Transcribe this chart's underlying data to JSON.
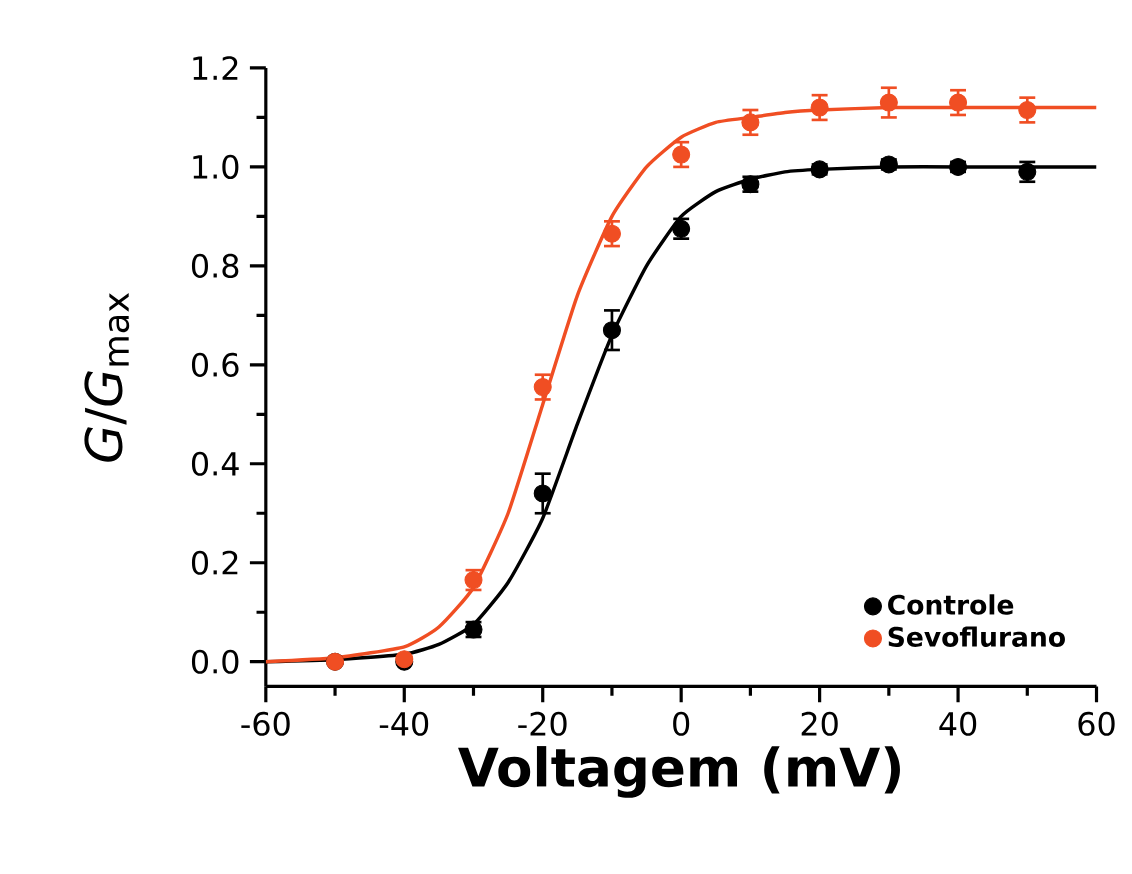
{
  "chart_data": {
    "type": "scatter",
    "xlabel": "Voltagem (mV)",
    "ylabel": "*G*/*G*$_{max}$",
    "xlim": [
      -60,
      60
    ],
    "ylim": [
      -0.05,
      1.2
    ],
    "xticks": [
      -60,
      -40,
      -20,
      0,
      20,
      40,
      60
    ],
    "yticks": [
      {
        "value": 0,
        "label": "0.0"
      },
      {
        "value": 0.2,
        "label": "0.2"
      },
      {
        "value": 0.4,
        "label": "0.4"
      },
      {
        "value": 0.6,
        "label": "0.6"
      },
      {
        "value": 0.8,
        "label": "0.8"
      },
      {
        "value": 1,
        "label": "1.0"
      },
      {
        "value": 1.2,
        "label": "1.2"
      }
    ],
    "grid": false,
    "legend": "bottom right",
    "x": [
      -50,
      -40,
      -30,
      -20,
      -10,
      0,
      10,
      20,
      30,
      40,
      50
    ],
    "series": [
      {
        "name": "Controle",
        "marker": "circle",
        "color": "#000000",
        "values": [
          0.0,
          0.0,
          0.065,
          0.34,
          0.67,
          0.875,
          0.965,
          0.995,
          1.005,
          1.0,
          0.99
        ],
        "errors": [
          null,
          null,
          0.015,
          0.04,
          0.04,
          0.02,
          0.015,
          0.01,
          0.01,
          0.01,
          0.02
        ]
      },
      {
        "name": "Sevoflurano",
        "marker": "circle",
        "color": "#f04e23",
        "values": [
          0.0,
          0.005,
          0.165,
          0.555,
          0.865,
          1.025,
          1.09,
          1.12,
          1.13,
          1.13,
          1.115
        ],
        "errors": [
          null,
          null,
          0.02,
          0.025,
          0.025,
          0.025,
          0.025,
          0.025,
          0.03,
          0.025,
          0.025
        ]
      },
      {
        "type": "line",
        "marker": "none",
        "color": "#000000",
        "x": [
          -60,
          -50,
          -40,
          -35,
          -30,
          -25,
          -20,
          -15,
          -10,
          -5,
          0,
          5,
          10,
          15,
          20,
          30,
          40,
          50,
          60
        ],
        "values": [
          0.0,
          0.004,
          0.015,
          0.035,
          0.075,
          0.16,
          0.29,
          0.48,
          0.66,
          0.8,
          0.9,
          0.95,
          0.975,
          0.99,
          0.995,
          1.0,
          1.0,
          1.0,
          1.0
        ]
      },
      {
        "type": "line",
        "marker": "none",
        "color": "#f04e23",
        "x": [
          -60,
          -50,
          -40,
          -35,
          -30,
          -25,
          -20,
          -15,
          -10,
          -5,
          0,
          5,
          10,
          15,
          20,
          30,
          40,
          50,
          60
        ],
        "values": [
          0.0,
          0.008,
          0.03,
          0.07,
          0.15,
          0.3,
          0.52,
          0.74,
          0.9,
          1.0,
          1.06,
          1.09,
          1.1,
          1.11,
          1.115,
          1.12,
          1.12,
          1.12,
          1.12
        ]
      }
    ]
  }
}
